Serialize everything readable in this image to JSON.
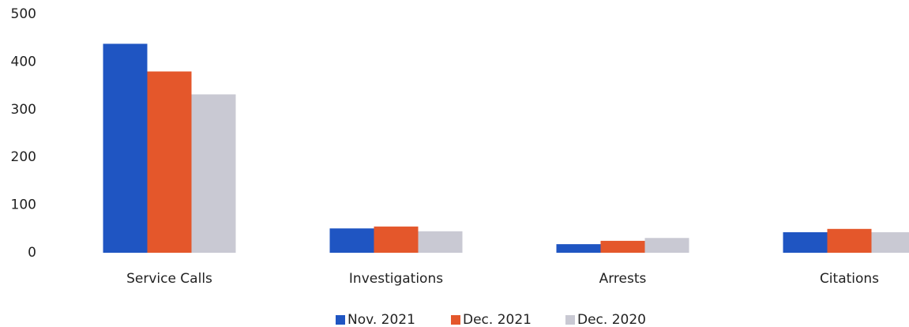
{
  "chart_data": {
    "type": "bar",
    "categories": [
      "Service Calls",
      "Investigations",
      "Arrests",
      "Citations"
    ],
    "series": [
      {
        "name": "Nov. 2021",
        "color": "#1f55c2",
        "values": [
          438,
          51,
          18,
          43
        ]
      },
      {
        "name": "Dec. 2021",
        "color": "#e4572b",
        "values": [
          380,
          55,
          25,
          50
        ]
      },
      {
        "name": "Dec. 2020",
        "color": "#c9c9d3",
        "values": [
          332,
          45,
          31,
          43
        ]
      }
    ],
    "ylim": [
      0,
      500
    ],
    "yticks": [
      0,
      100,
      200,
      300,
      400,
      500
    ],
    "grid": false,
    "legend": "bottom"
  }
}
